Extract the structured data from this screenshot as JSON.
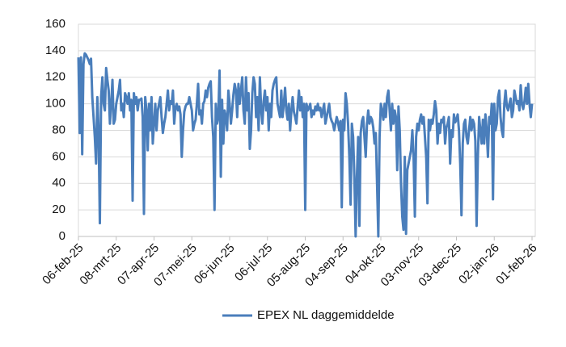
{
  "chart_data": {
    "type": "line",
    "categories": [
      "06-feb-25",
      null,
      null,
      null,
      null,
      null,
      null,
      null,
      null,
      null,
      null,
      null,
      null,
      null,
      null,
      null,
      null,
      null,
      null,
      null,
      null,
      null,
      null,
      null,
      null,
      null,
      null,
      null,
      null,
      null,
      "08-mrt-25",
      null,
      null,
      null,
      null,
      null,
      null,
      null,
      null,
      null,
      null,
      null,
      null,
      null,
      null,
      null,
      null,
      null,
      null,
      null,
      null,
      null,
      null,
      null,
      null,
      null,
      null,
      null,
      null,
      null,
      "07-apr-25",
      null,
      null,
      null,
      null,
      null,
      null,
      null,
      null,
      null,
      null,
      null,
      null,
      null,
      null,
      null,
      null,
      null,
      null,
      null,
      null,
      null,
      null,
      null,
      null,
      null,
      null,
      null,
      null,
      null,
      "07-mei-25",
      null,
      null,
      null,
      null,
      null,
      null,
      null,
      null,
      null,
      null,
      null,
      null,
      null,
      null,
      null,
      null,
      null,
      null,
      null,
      null,
      null,
      null,
      null,
      null,
      null,
      null,
      null,
      null,
      null,
      "06-jun-25",
      null,
      null,
      null,
      null,
      null,
      null,
      null,
      null,
      null,
      null,
      null,
      null,
      null,
      null,
      null,
      null,
      null,
      null,
      null,
      null,
      null,
      null,
      null,
      null,
      null,
      null,
      null,
      null,
      null,
      "06-jul-25",
      null,
      null,
      null,
      null,
      null,
      null,
      null,
      null,
      null,
      null,
      null,
      null,
      null,
      null,
      null,
      null,
      null,
      null,
      null,
      null,
      null,
      null,
      null,
      null,
      null,
      null,
      null,
      null,
      null,
      "05-aug-25",
      null,
      null,
      null,
      null,
      null,
      null,
      null,
      null,
      null,
      null,
      null,
      null,
      null,
      null,
      null,
      null,
      null,
      null,
      null,
      null,
      null,
      null,
      null,
      null,
      null,
      null,
      null,
      null,
      null,
      "04-sep-25",
      null,
      null,
      null,
      null,
      null,
      null,
      null,
      null,
      null,
      null,
      null,
      null,
      null,
      null,
      null,
      null,
      null,
      null,
      null,
      null,
      null,
      null,
      null,
      null,
      null,
      null,
      null,
      null,
      null,
      "04-okt-25",
      null,
      null,
      null,
      null,
      null,
      null,
      null,
      null,
      null,
      null,
      null,
      null,
      null,
      null,
      null,
      null,
      null,
      null,
      null,
      null,
      null,
      null,
      null,
      null,
      null,
      null,
      null,
      null,
      null,
      "03-nov-25",
      null,
      null,
      null,
      null,
      null,
      null,
      null,
      null,
      null,
      null,
      null,
      null,
      null,
      null,
      null,
      null,
      null,
      null,
      null,
      null,
      null,
      null,
      null,
      null,
      null,
      null,
      null,
      null,
      null,
      "03-dec-25",
      null,
      null,
      null,
      null,
      null,
      null,
      null,
      null,
      null,
      null,
      null,
      null,
      null,
      null,
      null,
      null,
      null,
      null,
      null,
      null,
      null,
      null,
      null,
      null,
      null,
      null,
      null,
      null,
      null,
      "02-jan-26",
      null,
      null,
      null,
      null,
      null,
      null,
      null,
      null,
      null,
      null,
      null,
      null,
      null,
      null,
      null,
      null,
      null,
      null,
      null,
      null,
      null,
      null,
      null,
      null,
      null,
      null,
      null,
      null,
      null,
      "01-feb-26"
    ],
    "series": [
      {
        "name": "EPEX NL daggemiddelde",
        "color": "#4a7ebb",
        "values": [
          135,
          78,
          135,
          62,
          130,
          138,
          137,
          135,
          133,
          130,
          134,
          105,
          90,
          75,
          55,
          105,
          80,
          10,
          105,
          120,
          100,
          95,
          127,
          118,
          110,
          85,
          100,
          118,
          85,
          88,
          100,
          105,
          110,
          118,
          95,
          100,
          90,
          108,
          105,
          100,
          108,
          95,
          103,
          27,
          108,
          100,
          105,
          95,
          103,
          103,
          104,
          90,
          17,
          105,
          95,
          65,
          100,
          80,
          105,
          70,
          85,
          100,
          80,
          95,
          100,
          105,
          90,
          78,
          85,
          90,
          100,
          110,
          95,
          102,
          100,
          110,
          85,
          97,
          100,
          95,
          98,
          92,
          60,
          80,
          94,
          98,
          100,
          100,
          105,
          100,
          95,
          80,
          85,
          88,
          100,
          115,
          92,
          95,
          85,
          100,
          102,
          110,
          105,
          112,
          115,
          117,
          90,
          75,
          20,
          100,
          85,
          90,
          125,
          45,
          103,
          70,
          95,
          90,
          80,
          110,
          100,
          85,
          95,
          107,
          115,
          110,
          90,
          115,
          100,
          110,
          120,
          95,
          85,
          120,
          95,
          108,
          66,
          80,
          108,
          120,
          115,
          90,
          105,
          80,
          120,
          96,
          85,
          102,
          110,
          95,
          105,
          80,
          100,
          90,
          110,
          115,
          118,
          120,
          100,
          95,
          90,
          110,
          90,
          100,
          112,
          95,
          88,
          100,
          80,
          95,
          105,
          94,
          90,
          85,
          98,
          110,
          95,
          105,
          90,
          100,
          20,
          100,
          95,
          97,
          100,
          90,
          95,
          92,
          98,
          95,
          100,
          95,
          97,
          90,
          95,
          100,
          85,
          90,
          95,
          100,
          90,
          87,
          85,
          80,
          85,
          90,
          86,
          80,
          87,
          22,
          88,
          80,
          108,
          100,
          85,
          60,
          24,
          85,
          75,
          45,
          0,
          45,
          75,
          8,
          78,
          87,
          90,
          75,
          60,
          85,
          95,
          85,
          90,
          88,
          82,
          70,
          78,
          40,
          0,
          75,
          100,
          95,
          88,
          100,
          90,
          105,
          110,
          95,
          80,
          100,
          85,
          95,
          90,
          50,
          98,
          80,
          40,
          15,
          5,
          60,
          2,
          50,
          55,
          60,
          65,
          80,
          60,
          15,
          75,
          85,
          80,
          88,
          92,
          85,
          90,
          75,
          60,
          25,
          88,
          80,
          88,
          85,
          92,
          102,
          95,
          70,
          85,
          78,
          88,
          86,
          90,
          70,
          82,
          85,
          90,
          55,
          80,
          75,
          92,
          86,
          88,
          92,
          80,
          55,
          16,
          70,
          85,
          88,
          75,
          70,
          80,
          90,
          80,
          88,
          85,
          72,
          8,
          60,
          90,
          80,
          70,
          88,
          70,
          92,
          80,
          60,
          90,
          85,
          100,
          28,
          100,
          80,
          85,
          105,
          110,
          90,
          80,
          75,
          100,
          110,
          98,
          95,
          100,
          104,
          90,
          95,
          110,
          105,
          100,
          102,
          95,
          114,
          100,
          96,
          102,
          112,
          100,
          115,
          100,
          90,
          100
        ]
      }
    ],
    "ylim": [
      0,
      160
    ],
    "yticks": [
      0,
      20,
      40,
      60,
      80,
      100,
      120,
      140,
      160
    ],
    "grid": true,
    "legend": "bottom"
  }
}
